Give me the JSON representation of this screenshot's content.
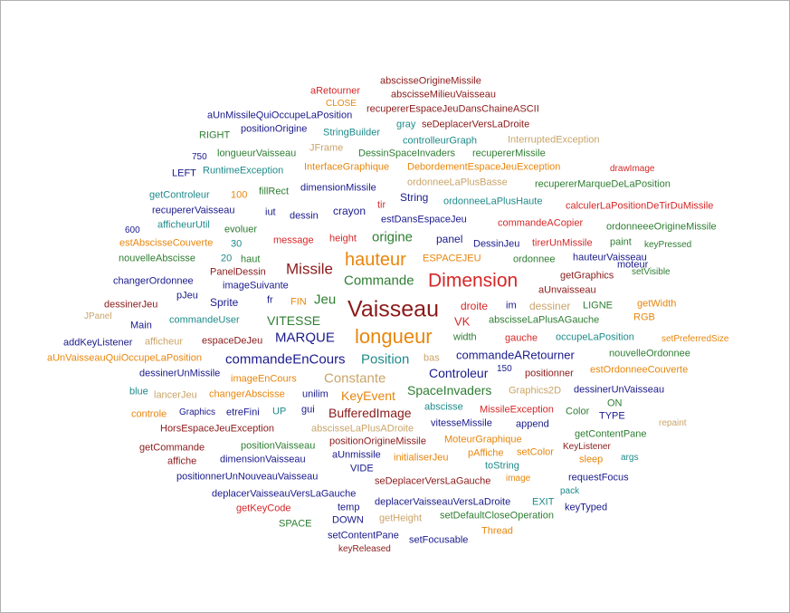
{
  "palette": {
    "red": "#d62728",
    "darkred": "#8b1a1a",
    "orange": "#e8860c",
    "tan": "#c9a469",
    "navy": "#1a1a8c",
    "teal": "#1f8a8a",
    "green": "#2e7d32"
  },
  "words": [
    {
      "text": "abscisseOrigineMissile",
      "color": "darkred"
    },
    {
      "text": "aRetourner",
      "color": "red"
    },
    {
      "text": "abscisseMilieuVaisseau",
      "color": "darkred"
    },
    {
      "text": "CLOSE",
      "color": "orange"
    },
    {
      "text": "recupererEspaceJeuDansChaineASCII",
      "color": "darkred"
    },
    {
      "text": "aUnMissileQuiOccupeLaPosition",
      "color": "navy"
    },
    {
      "text": "gray",
      "color": "teal"
    },
    {
      "text": "seDeplacerVersLaDroite",
      "color": "darkred"
    },
    {
      "text": "RIGHT",
      "color": "green"
    },
    {
      "text": "positionOrigine",
      "color": "navy"
    },
    {
      "text": "StringBuilder",
      "color": "teal"
    },
    {
      "text": "controlleurGraph",
      "color": "teal"
    },
    {
      "text": "InterruptedException",
      "color": "tan"
    },
    {
      "text": "JFrame",
      "color": "tan"
    },
    {
      "text": "750",
      "color": "navy"
    },
    {
      "text": "longueurVaisseau",
      "color": "green"
    },
    {
      "text": "DessinSpaceInvaders",
      "color": "green"
    },
    {
      "text": "recupererMissile",
      "color": "green"
    },
    {
      "text": "LEFT",
      "color": "navy"
    },
    {
      "text": "RuntimeException",
      "color": "teal"
    },
    {
      "text": "InterfaceGraphique",
      "color": "orange"
    },
    {
      "text": "DebordementEspaceJeuException",
      "color": "orange"
    },
    {
      "text": "drawImage",
      "color": "red"
    },
    {
      "text": "ordonneeLaPlusBasse",
      "color": "tan"
    },
    {
      "text": "recupererMarqueDeLaPosition",
      "color": "green"
    },
    {
      "text": "getControleur",
      "color": "teal"
    },
    {
      "text": "100",
      "color": "orange"
    },
    {
      "text": "fillRect",
      "color": "green"
    },
    {
      "text": "dimensionMissile",
      "color": "navy"
    },
    {
      "text": "String",
      "color": "navy"
    },
    {
      "text": "ordonneeLaPlusHaute",
      "color": "teal"
    },
    {
      "text": "calculerLaPositionDeTirDuMissile",
      "color": "red"
    },
    {
      "text": "recupererVaisseau",
      "color": "navy"
    },
    {
      "text": "tir",
      "color": "red"
    },
    {
      "text": "iut",
      "color": "navy"
    },
    {
      "text": "dessin",
      "color": "navy"
    },
    {
      "text": "crayon",
      "color": "navy"
    },
    {
      "text": "estDansEspaceJeu",
      "color": "navy"
    },
    {
      "text": "afficheurUtil",
      "color": "teal"
    },
    {
      "text": "commandeACopier",
      "color": "red"
    },
    {
      "text": "ordonneeeOrigineMissile",
      "color": "green"
    },
    {
      "text": "600",
      "color": "navy"
    },
    {
      "text": "evoluer",
      "color": "green"
    },
    {
      "text": "message",
      "color": "red"
    },
    {
      "text": "height",
      "color": "red"
    },
    {
      "text": "origine",
      "color": "green"
    },
    {
      "text": "panel",
      "color": "navy"
    },
    {
      "text": "DessinJeu",
      "color": "navy"
    },
    {
      "text": "tirerUnMissile",
      "color": "red"
    },
    {
      "text": "paint",
      "color": "green"
    },
    {
      "text": "keyPressed",
      "color": "green"
    },
    {
      "text": "estAbscisseCouverte",
      "color": "orange"
    },
    {
      "text": "30",
      "color": "teal"
    },
    {
      "text": "nouvelleAbscisse",
      "color": "green"
    },
    {
      "text": "20",
      "color": "teal"
    },
    {
      "text": "haut",
      "color": "green"
    },
    {
      "text": "hauteur",
      "color": "orange"
    },
    {
      "text": "ESPACEJEU",
      "color": "orange"
    },
    {
      "text": "ordonnee",
      "color": "green"
    },
    {
      "text": "hauteurVaisseau",
      "color": "navy"
    },
    {
      "text": "PanelDessin",
      "color": "darkred"
    },
    {
      "text": "Missile",
      "color": "darkred"
    },
    {
      "text": "moteur",
      "color": "navy"
    },
    {
      "text": "setVisible",
      "color": "green"
    },
    {
      "text": "changerOrdonnee",
      "color": "navy"
    },
    {
      "text": "imageSuivante",
      "color": "navy"
    },
    {
      "text": "Commande",
      "color": "green"
    },
    {
      "text": "Dimension",
      "color": "red"
    },
    {
      "text": "getGraphics",
      "color": "darkred"
    },
    {
      "text": "pJeu",
      "color": "navy"
    },
    {
      "text": "aUnvaisseau",
      "color": "darkred"
    },
    {
      "text": "dessinerJeu",
      "color": "darkred"
    },
    {
      "text": "Sprite",
      "color": "navy"
    },
    {
      "text": "fr",
      "color": "navy"
    },
    {
      "text": "FIN",
      "color": "orange"
    },
    {
      "text": "Jeu",
      "color": "green"
    },
    {
      "text": "Vaisseau",
      "color": "darkred"
    },
    {
      "text": "droite",
      "color": "red"
    },
    {
      "text": "im",
      "color": "navy"
    },
    {
      "text": "dessiner",
      "color": "tan"
    },
    {
      "text": "LIGNE",
      "color": "green"
    },
    {
      "text": "getWidth",
      "color": "orange"
    },
    {
      "text": "JPanel",
      "color": "tan"
    },
    {
      "text": "commandeUser",
      "color": "teal"
    },
    {
      "text": "VITESSE",
      "color": "green"
    },
    {
      "text": "VK",
      "color": "red"
    },
    {
      "text": "abscisseLaPlusAGauche",
      "color": "green"
    },
    {
      "text": "RGB",
      "color": "orange"
    },
    {
      "text": "Main",
      "color": "navy"
    },
    {
      "text": "longueur",
      "color": "orange"
    },
    {
      "text": "width",
      "color": "green"
    },
    {
      "text": "gauche",
      "color": "red"
    },
    {
      "text": "occupeLaPosition",
      "color": "teal"
    },
    {
      "text": "setPreferredSize",
      "color": "orange"
    },
    {
      "text": "addKeyListener",
      "color": "navy"
    },
    {
      "text": "afficheur",
      "color": "tan"
    },
    {
      "text": "espaceDeJeu",
      "color": "darkred"
    },
    {
      "text": "MARQUE",
      "color": "navy"
    },
    {
      "text": "commandeARetourner",
      "color": "navy"
    },
    {
      "text": "nouvelleOrdonnee",
      "color": "green"
    },
    {
      "text": "aUnVaisseauQuiOccupeLaPosition",
      "color": "orange"
    },
    {
      "text": "commandeEnCours",
      "color": "navy"
    },
    {
      "text": "Position",
      "color": "teal"
    },
    {
      "text": "bas",
      "color": "tan"
    },
    {
      "text": "estOrdonneeCouverte",
      "color": "orange"
    },
    {
      "text": "dessinerUnMissile",
      "color": "navy"
    },
    {
      "text": "imageEnCours",
      "color": "orange"
    },
    {
      "text": "Constante",
      "color": "tan"
    },
    {
      "text": "Controleur",
      "color": "navy"
    },
    {
      "text": "150",
      "color": "navy"
    },
    {
      "text": "positionner",
      "color": "darkred"
    },
    {
      "text": "blue",
      "color": "teal"
    },
    {
      "text": "lancerJeu",
      "color": "tan"
    },
    {
      "text": "changerAbscisse",
      "color": "orange"
    },
    {
      "text": "unilim",
      "color": "navy"
    },
    {
      "text": "KeyEvent",
      "color": "orange"
    },
    {
      "text": "SpaceInvaders",
      "color": "green"
    },
    {
      "text": "Graphics2D",
      "color": "tan"
    },
    {
      "text": "dessinerUnVaisseau",
      "color": "navy"
    },
    {
      "text": "gui",
      "color": "navy"
    },
    {
      "text": "abscisse",
      "color": "teal"
    },
    {
      "text": "ON",
      "color": "green"
    },
    {
      "text": "Graphics",
      "color": "navy"
    },
    {
      "text": "etreFini",
      "color": "navy"
    },
    {
      "text": "UP",
      "color": "teal"
    },
    {
      "text": "controle",
      "color": "orange"
    },
    {
      "text": "BufferedImage",
      "color": "darkred"
    },
    {
      "text": "MissileException",
      "color": "red"
    },
    {
      "text": "Color",
      "color": "green"
    },
    {
      "text": "TYPE",
      "color": "navy"
    },
    {
      "text": "HorsEspaceJeuException",
      "color": "darkred"
    },
    {
      "text": "abscisseLaPlusADroite",
      "color": "tan"
    },
    {
      "text": "vitesseMissile",
      "color": "navy"
    },
    {
      "text": "append",
      "color": "navy"
    },
    {
      "text": "repaint",
      "color": "tan"
    },
    {
      "text": "getContentPane",
      "color": "green"
    },
    {
      "text": "positionOrigineMissile",
      "color": "darkred"
    },
    {
      "text": "MoteurGraphique",
      "color": "orange"
    },
    {
      "text": "getCommande",
      "color": "darkred"
    },
    {
      "text": "positionVaisseau",
      "color": "green"
    },
    {
      "text": "KeyListener",
      "color": "darkred"
    },
    {
      "text": "pAffiche",
      "color": "orange"
    },
    {
      "text": "setColor",
      "color": "orange"
    },
    {
      "text": "aUnmissile",
      "color": "navy"
    },
    {
      "text": "initialiserJeu",
      "color": "orange"
    },
    {
      "text": "args",
      "color": "teal"
    },
    {
      "text": "affiche",
      "color": "darkred"
    },
    {
      "text": "dimensionVaisseau",
      "color": "navy"
    },
    {
      "text": "sleep",
      "color": "orange"
    },
    {
      "text": "toString",
      "color": "teal"
    },
    {
      "text": "VIDE",
      "color": "navy"
    },
    {
      "text": "positionnerUnNouveauVaisseau",
      "color": "navy"
    },
    {
      "text": "image",
      "color": "orange"
    },
    {
      "text": "requestFocus",
      "color": "navy"
    },
    {
      "text": "seDeplacerVersLaGauche",
      "color": "darkred"
    },
    {
      "text": "pack",
      "color": "teal"
    },
    {
      "text": "deplacerVaisseauVersLaGauche",
      "color": "navy"
    },
    {
      "text": "temp",
      "color": "navy"
    },
    {
      "text": "deplacerVaisseauVersLaDroite",
      "color": "navy"
    },
    {
      "text": "EXIT",
      "color": "teal"
    },
    {
      "text": "getKeyCode",
      "color": "red"
    },
    {
      "text": "keyTyped",
      "color": "navy"
    },
    {
      "text": "DOWN",
      "color": "navy"
    },
    {
      "text": "getHeight",
      "color": "tan"
    },
    {
      "text": "setDefaultCloseOperation",
      "color": "green"
    },
    {
      "text": "SPACE",
      "color": "green"
    },
    {
      "text": "Thread",
      "color": "orange"
    },
    {
      "text": "setContentPane",
      "color": "navy"
    },
    {
      "text": "setFocusable",
      "color": "navy"
    },
    {
      "text": "keyReleased",
      "color": "darkred"
    }
  ]
}
